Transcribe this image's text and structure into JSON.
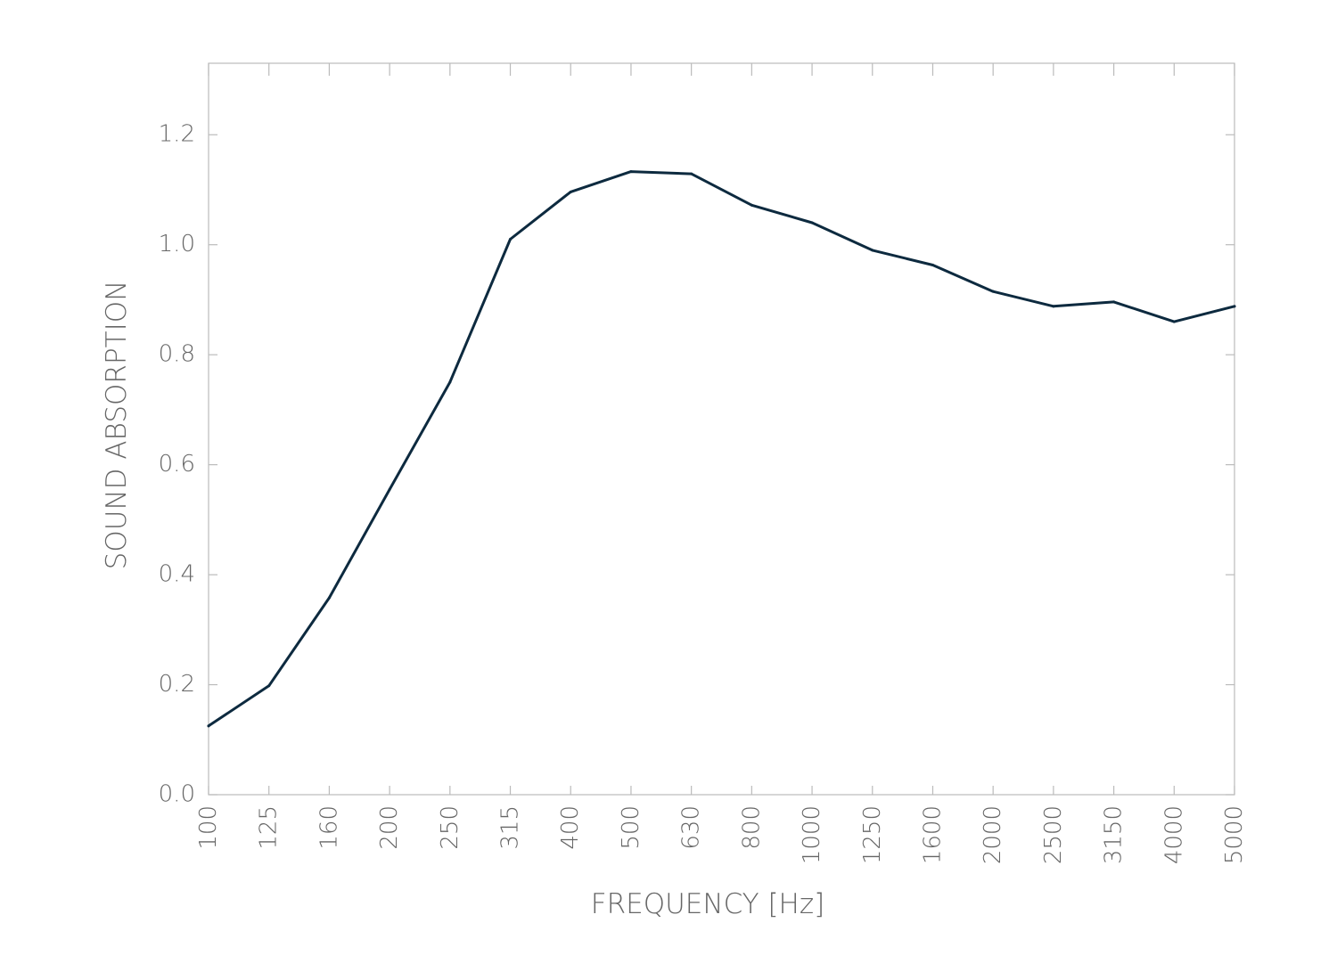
{
  "chart_data": {
    "type": "line",
    "xlabel": "FREQUENCY [Hz]",
    "ylabel": "SOUND ABSORPTION",
    "categories": [
      "100",
      "125",
      "160",
      "200",
      "250",
      "315",
      "400",
      "500",
      "630",
      "800",
      "1000",
      "1250",
      "1600",
      "2000",
      "2500",
      "3150",
      "4000",
      "5000"
    ],
    "series": [
      {
        "values": [
          0.125,
          0.198,
          0.358,
          0.555,
          0.75,
          1.01,
          1.096,
          1.133,
          1.129,
          1.072,
          1.04,
          0.99,
          0.963,
          0.915,
          0.888,
          0.896,
          0.86,
          0.888
        ]
      }
    ],
    "ylim": [
      0,
      1.33
    ],
    "yticks": [
      0,
      0.2,
      0.4,
      0.6,
      0.8,
      1.0,
      1.2
    ],
    "ytick_labels": [
      "0.0",
      "0.2",
      "0.4",
      "0.6",
      "0.8",
      "1.0",
      "1.2"
    ],
    "grid": false,
    "line_color": "#0d2a3f",
    "axis_color": "#bbbbbb"
  }
}
